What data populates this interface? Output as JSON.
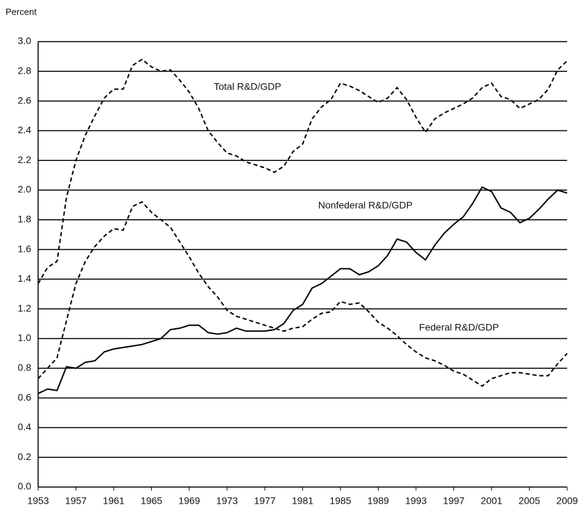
{
  "chart_data": {
    "type": "line",
    "y_axis_label": "Percent",
    "x": [
      1953,
      1954,
      1955,
      1956,
      1957,
      1958,
      1959,
      1960,
      1961,
      1962,
      1963,
      1964,
      1965,
      1966,
      1967,
      1968,
      1969,
      1970,
      1971,
      1972,
      1973,
      1974,
      1975,
      1976,
      1977,
      1978,
      1979,
      1980,
      1981,
      1982,
      1983,
      1984,
      1985,
      1986,
      1987,
      1988,
      1989,
      1990,
      1991,
      1992,
      1993,
      1994,
      1995,
      1996,
      1997,
      1998,
      1999,
      2000,
      2001,
      2002,
      2003,
      2004,
      2005,
      2006,
      2007,
      2008,
      2009
    ],
    "series": [
      {
        "name": "Total R&D/GDP",
        "color": "#000000",
        "dash": "dashed",
        "values": [
          1.37,
          1.48,
          1.52,
          1.95,
          2.2,
          2.37,
          2.5,
          2.62,
          2.68,
          2.68,
          2.84,
          2.88,
          2.83,
          2.8,
          2.81,
          2.74,
          2.66,
          2.55,
          2.4,
          2.32,
          2.25,
          2.23,
          2.19,
          2.17,
          2.15,
          2.12,
          2.16,
          2.26,
          2.31,
          2.48,
          2.56,
          2.61,
          2.72,
          2.7,
          2.67,
          2.63,
          2.59,
          2.62,
          2.69,
          2.61,
          2.49,
          2.39,
          2.48,
          2.52,
          2.55,
          2.58,
          2.62,
          2.69,
          2.72,
          2.63,
          2.61,
          2.55,
          2.58,
          2.61,
          2.68,
          2.81,
          2.87
        ]
      },
      {
        "name": "Nonfederal R&D/GDP",
        "color": "#000000",
        "dash": "solid",
        "values": [
          0.63,
          0.66,
          0.65,
          0.81,
          0.8,
          0.84,
          0.85,
          0.91,
          0.93,
          0.94,
          0.95,
          0.96,
          0.98,
          1.0,
          1.06,
          1.07,
          1.09,
          1.09,
          1.04,
          1.03,
          1.04,
          1.07,
          1.05,
          1.05,
          1.05,
          1.06,
          1.1,
          1.19,
          1.23,
          1.34,
          1.37,
          1.42,
          1.47,
          1.47,
          1.43,
          1.45,
          1.49,
          1.56,
          1.67,
          1.65,
          1.58,
          1.53,
          1.63,
          1.71,
          1.77,
          1.82,
          1.91,
          2.02,
          1.99,
          1.88,
          1.85,
          1.78,
          1.81,
          1.87,
          1.94,
          2.0,
          1.98
        ]
      },
      {
        "name": "Federal R&D/GDP",
        "color": "#000000",
        "dash": "dashed",
        "values": [
          0.73,
          0.8,
          0.87,
          1.12,
          1.37,
          1.52,
          1.62,
          1.69,
          1.74,
          1.73,
          1.89,
          1.92,
          1.85,
          1.8,
          1.75,
          1.65,
          1.55,
          1.44,
          1.35,
          1.28,
          1.19,
          1.15,
          1.13,
          1.11,
          1.09,
          1.07,
          1.05,
          1.07,
          1.08,
          1.13,
          1.17,
          1.18,
          1.25,
          1.23,
          1.24,
          1.18,
          1.11,
          1.07,
          1.02,
          0.96,
          0.91,
          0.87,
          0.85,
          0.82,
          0.78,
          0.76,
          0.72,
          0.68,
          0.73,
          0.75,
          0.77,
          0.77,
          0.76,
          0.75,
          0.75,
          0.83,
          0.9
        ]
      }
    ],
    "xlim": [
      1953,
      2009
    ],
    "xticks": [
      1953,
      1957,
      1961,
      1965,
      1969,
      1973,
      1977,
      1981,
      1985,
      1989,
      1993,
      1997,
      2001,
      2005,
      2009
    ],
    "ylim": [
      0,
      3
    ],
    "yticks": [
      {
        "value": 0,
        "label": "0.0"
      },
      0.2,
      0.4,
      0.6,
      0.8,
      {
        "value": 1,
        "label": "1.0"
      },
      1.2,
      1.4,
      1.6,
      1.8,
      {
        "value": 2,
        "label": "2.0"
      },
      2.2,
      2.4,
      2.6,
      2.8,
      {
        "value": 3,
        "label": "3.0"
      }
    ],
    "grid": true
  }
}
